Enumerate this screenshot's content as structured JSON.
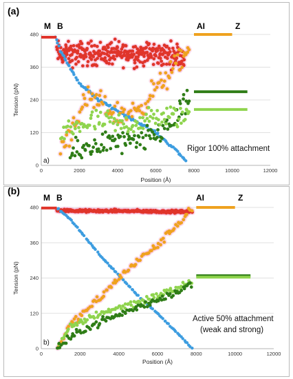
{
  "colors": {
    "red": "#e0352b",
    "blue": "#3d9de0",
    "orange": "#efa21f",
    "dark_green": "#2f7d17",
    "light_green": "#8fd44e",
    "halo": "#f7b9d8",
    "grid": "#d6d6d6"
  },
  "chart_data": [
    {
      "type": "scatter",
      "panel_label": "(a)",
      "sub_label": "a)",
      "annotation": [
        "Rigor 100% attachment"
      ],
      "region_labels": [
        "M",
        "B",
        "AI",
        "Z"
      ],
      "xlabel": "Position (Å)",
      "ylabel": "Tension (pN)",
      "xlim": [
        0,
        12000
      ],
      "ylim": [
        0,
        480
      ],
      "xticks": [
        0,
        2000,
        4000,
        6000,
        8000,
        10000,
        12000
      ],
      "yticks": [
        0,
        120,
        240,
        360,
        480
      ],
      "grid": "horizontal",
      "series": [
        {
          "color_key": "red",
          "x": [
            800,
            1000,
            1500,
            2000,
            3000,
            4000,
            5000,
            6000,
            7000,
            7500
          ],
          "y": [
            415,
            410,
            405,
            410,
            410,
            410,
            410,
            408,
            405,
            402
          ]
        },
        {
          "color_key": "blue",
          "x": [
            700,
            1000,
            1500,
            2000,
            2500,
            3000,
            4000,
            5000,
            6000,
            7000,
            7600
          ],
          "y": [
            480,
            420,
            360,
            300,
            270,
            240,
            200,
            160,
            120,
            60,
            15
          ]
        },
        {
          "color_key": "orange",
          "x": [
            1000,
            1500,
            2000,
            2500,
            3000,
            4000,
            5000,
            6000,
            7000,
            7800
          ],
          "y": [
            60,
            120,
            200,
            240,
            230,
            185,
            200,
            280,
            360,
            430
          ]
        },
        {
          "color_key": "dark_green",
          "x": [
            1500,
            2000,
            3000,
            4000,
            5000,
            6000,
            7000,
            7800
          ],
          "y": [
            40,
            50,
            80,
            85,
            80,
            110,
            170,
            240
          ]
        },
        {
          "color_key": "light_green",
          "x": [
            1000,
            2000,
            3000,
            4000,
            5000,
            6000,
            7000,
            7800
          ],
          "y": [
            110,
            150,
            160,
            150,
            155,
            175,
            180,
            185
          ]
        },
        {
          "color_key": "red",
          "x": [
            0,
            800
          ],
          "y": [
            470,
            470
          ]
        },
        {
          "color_key": "orange",
          "x": [
            8000,
            10000
          ],
          "y": [
            480,
            480
          ]
        },
        {
          "color_key": "dark_green",
          "x": [
            8000,
            10800
          ],
          "y": [
            270,
            270
          ]
        },
        {
          "color_key": "light_green",
          "x": [
            8000,
            10800
          ],
          "y": [
            205,
            205
          ]
        }
      ]
    },
    {
      "type": "scatter",
      "panel_label": "(b)",
      "sub_label": "b)",
      "annotation": [
        "Active 50% attachment",
        "(weak and strong)"
      ],
      "region_labels": [
        "M",
        "B",
        "AI",
        "Z"
      ],
      "xlabel": "Position (Å)",
      "ylabel": "Tension (pN)",
      "xlim": [
        0,
        12000
      ],
      "ylim": [
        0,
        480
      ],
      "xticks": [
        0,
        2000,
        4000,
        6000,
        8000,
        10000,
        12000
      ],
      "yticks": [
        0,
        120,
        240,
        360,
        480
      ],
      "grid": "horizontal",
      "series": [
        {
          "color_key": "red",
          "x": [
            800,
            2000,
            4000,
            6000,
            7800
          ],
          "y": [
            470,
            468,
            468,
            466,
            465
          ]
        },
        {
          "color_key": "blue",
          "x": [
            800,
            1500,
            2000,
            3000,
            4000,
            5000,
            6000,
            7000,
            7800
          ],
          "y": [
            480,
            440,
            400,
            320,
            250,
            180,
            120,
            55,
            0
          ]
        },
        {
          "color_key": "orange",
          "x": [
            800,
            1500,
            2000,
            3000,
            4000,
            5000,
            6000,
            7000,
            7800
          ],
          "y": [
            0,
            80,
            110,
            170,
            240,
            300,
            350,
            420,
            480
          ]
        },
        {
          "color_key": "light_green",
          "x": [
            800,
            1500,
            2000,
            3000,
            4000,
            5000,
            6000,
            7000,
            7800
          ],
          "y": [
            0,
            70,
            90,
            120,
            140,
            160,
            180,
            205,
            230
          ]
        },
        {
          "color_key": "dark_green",
          "x": [
            800,
            1500,
            2000,
            3000,
            4000,
            5000,
            6000,
            7000,
            7800
          ],
          "y": [
            0,
            35,
            60,
            90,
            115,
            140,
            165,
            195,
            220
          ]
        },
        {
          "color_key": "red",
          "x": [
            0,
            800
          ],
          "y": [
            478,
            478
          ]
        },
        {
          "color_key": "orange",
          "x": [
            8000,
            10000
          ],
          "y": [
            480,
            480
          ]
        },
        {
          "color_key": "dark_green",
          "x": [
            8000,
            10800
          ],
          "y": [
            248,
            248
          ]
        },
        {
          "color_key": "light_green",
          "x": [
            8000,
            10800
          ],
          "y": [
            243,
            243
          ]
        }
      ]
    }
  ]
}
